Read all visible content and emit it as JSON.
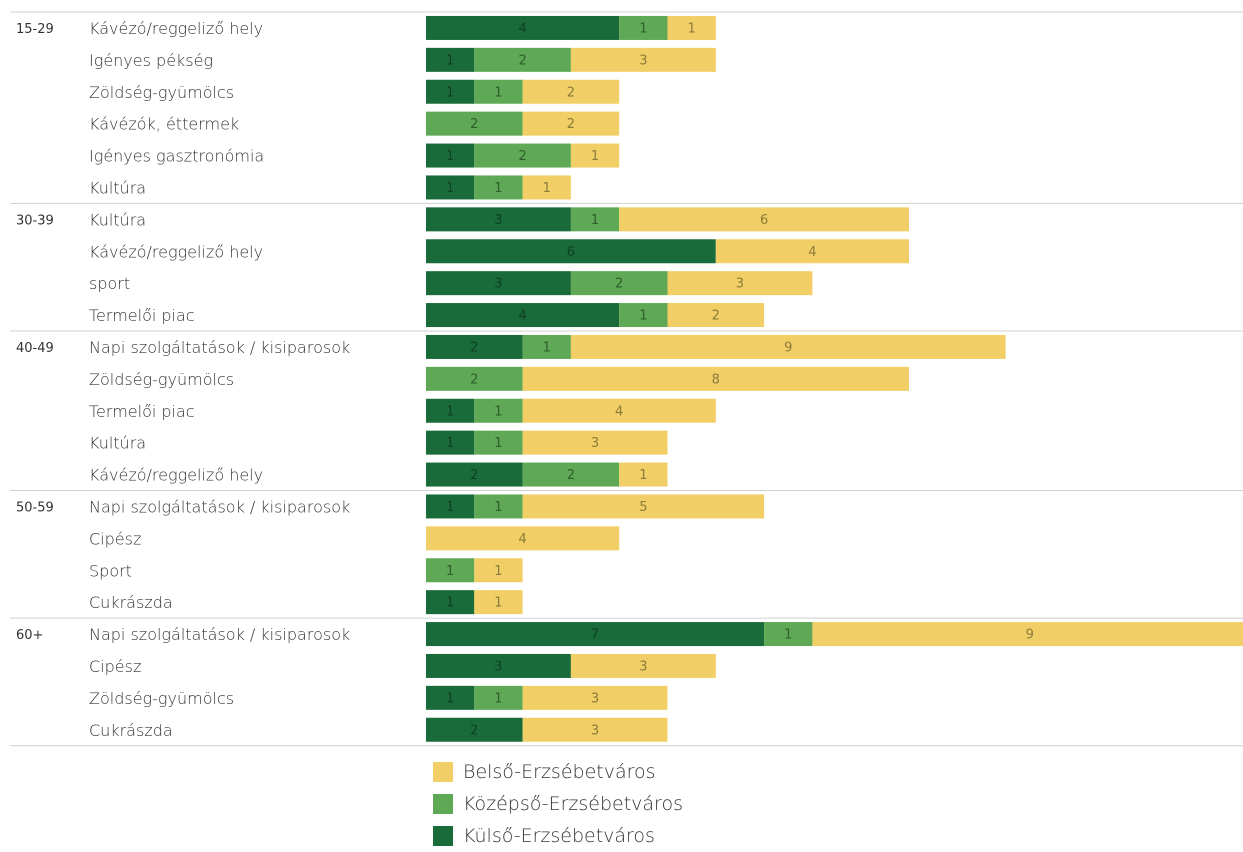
{
  "chart_data": {
    "type": "bar",
    "orientation": "horizontal",
    "stacked": true,
    "series": [
      {
        "name": "Külső-Erzsébetváros",
        "color": "#1a6b3a"
      },
      {
        "name": "Középső-Erzsébetváros",
        "color": "#5fa855"
      },
      {
        "name": "Belső-Erzsébetváros",
        "color": "#f2cf66"
      }
    ],
    "groups": [
      {
        "label": "15-29",
        "rows": [
          {
            "category": "Kávézó/reggeliző hely",
            "values": [
              4,
              1,
              1
            ]
          },
          {
            "category": "Igényes pékség",
            "values": [
              1,
              2,
              3
            ]
          },
          {
            "category": "Zöldség-gyümölcs",
            "values": [
              1,
              1,
              2
            ]
          },
          {
            "category": "Kávézók, éttermek",
            "values": [
              0,
              2,
              2
            ]
          },
          {
            "category": "Igényes gasztronómia",
            "values": [
              1,
              2,
              1
            ]
          },
          {
            "category": "Kultúra",
            "values": [
              1,
              1,
              1
            ]
          }
        ]
      },
      {
        "label": "30-39",
        "rows": [
          {
            "category": "Kultúra",
            "values": [
              3,
              1,
              6
            ]
          },
          {
            "category": "Kávézó/reggeliző hely",
            "values": [
              6,
              0,
              4
            ]
          },
          {
            "category": "sport",
            "values": [
              3,
              2,
              3
            ]
          },
          {
            "category": "Termelői piac",
            "values": [
              4,
              1,
              2
            ]
          }
        ]
      },
      {
        "label": "40-49",
        "rows": [
          {
            "category": "Napi szolgáltatások / kisiparosok",
            "values": [
              2,
              1,
              9
            ]
          },
          {
            "category": "Zöldség-gyümölcs",
            "values": [
              0,
              2,
              8
            ]
          },
          {
            "category": "Termelői piac",
            "values": [
              1,
              1,
              4
            ]
          },
          {
            "category": "Kultúra",
            "values": [
              1,
              1,
              3
            ]
          },
          {
            "category": "Kávézó/reggeliző hely",
            "values": [
              2,
              2,
              1
            ]
          }
        ]
      },
      {
        "label": "50-59",
        "rows": [
          {
            "category": "Napi szolgáltatások / kisiparosok",
            "values": [
              1,
              1,
              5
            ]
          },
          {
            "category": "Cipész",
            "values": [
              0,
              0,
              4
            ]
          },
          {
            "category": "Sport",
            "values": [
              0,
              1,
              1
            ]
          },
          {
            "category": "Cukrászda",
            "values": [
              1,
              0,
              1
            ]
          }
        ]
      },
      {
        "label": "60+",
        "rows": [
          {
            "category": "Napi szolgáltatások / kisiparosok",
            "values": [
              7,
              1,
              9
            ]
          },
          {
            "category": "Cipész",
            "values": [
              3,
              0,
              3
            ]
          },
          {
            "category": "Zöldség-gyümölcs",
            "values": [
              1,
              1,
              3
            ]
          },
          {
            "category": "Cukrászda",
            "values": [
              2,
              0,
              3
            ]
          }
        ]
      }
    ],
    "xlim": [
      0,
      17
    ],
    "legend_position": "bottom",
    "legend_order": [
      "Belső-Erzsébetváros",
      "Középső-Erzsébetváros",
      "Külső-Erzsébetváros"
    ]
  }
}
